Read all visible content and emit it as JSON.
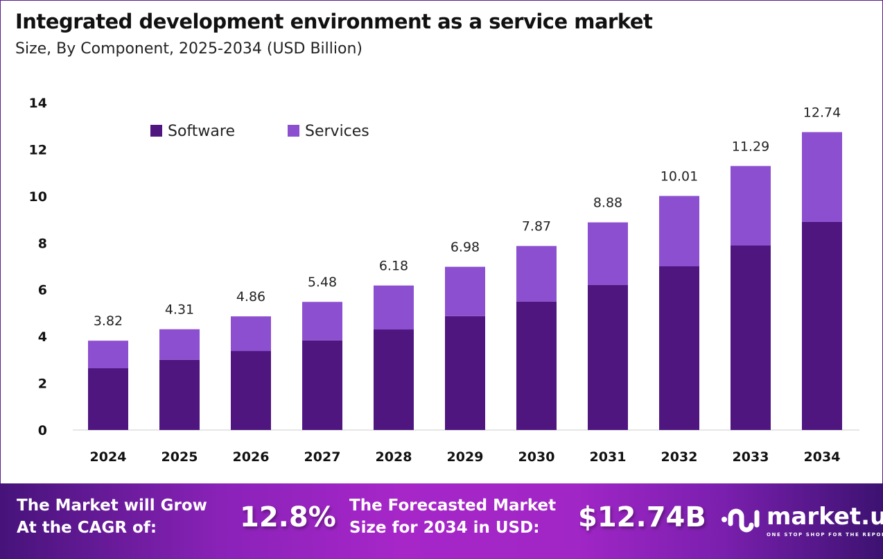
{
  "chart_data": {
    "type": "bar",
    "stacked": true,
    "title": "Integrated development environment as a service market",
    "subtitle": "Size, By Component, 2025-2034 (USD Billion)",
    "categories": [
      "2024",
      "2025",
      "2026",
      "2027",
      "2028",
      "2029",
      "2030",
      "2031",
      "2032",
      "2033",
      "2034"
    ],
    "series": [
      {
        "name": "Software",
        "color": "#4f1680",
        "values": [
          2.64,
          3.0,
          3.38,
          3.83,
          4.3,
          4.87,
          5.49,
          6.2,
          7.0,
          7.89,
          8.9
        ]
      },
      {
        "name": "Services",
        "color": "#8c4fcf",
        "values": [
          1.18,
          1.31,
          1.48,
          1.65,
          1.88,
          2.11,
          2.38,
          2.68,
          3.01,
          3.4,
          3.84
        ]
      }
    ],
    "totals": [
      "3.82",
      "4.31",
      "4.86",
      "5.48",
      "6.18",
      "6.98",
      "7.87",
      "8.88",
      "10.01",
      "11.29",
      "12.74"
    ],
    "ylim": [
      0,
      14
    ],
    "yticks": [
      0,
      2,
      4,
      6,
      8,
      10,
      12,
      14
    ],
    "grid": false,
    "legend": "top-left",
    "xlabel": "",
    "ylabel": ""
  },
  "banner": {
    "cagr_label_1": "The Market will Grow",
    "cagr_label_2": "At the CAGR of:",
    "cagr_value": "12.8%",
    "forecast_label_1": "The Forecasted Market",
    "forecast_label_2": "Size for 2034 in USD:",
    "forecast_value": "$12.74B",
    "logo_name": "market.us",
    "logo_tagline": "ONE STOP SHOP FOR THE REPORTS"
  }
}
